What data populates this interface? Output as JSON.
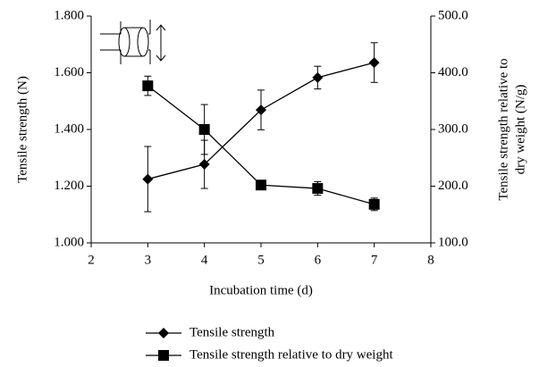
{
  "chart_data": {
    "type": "line",
    "x": [
      3,
      4,
      5,
      6,
      7
    ],
    "xlabel": "Incubation time (d)",
    "ylabel": "Tensile strength (N)",
    "y2label": [
      "Tensile strength relative to",
      "dry weight (N/g)"
    ],
    "xlim": [
      2,
      8
    ],
    "xticks": [
      2,
      3,
      4,
      5,
      6,
      7,
      8
    ],
    "ylim": [
      1,
      1.8
    ],
    "yticks": [
      {
        "value": 1,
        "label": "1.000"
      },
      {
        "value": 1.2,
        "label": "1.200"
      },
      {
        "value": 1.4,
        "label": "1.400"
      },
      {
        "value": 1.6,
        "label": "1.600"
      },
      {
        "value": 1.8,
        "label": "1.800"
      }
    ],
    "y2lim": [
      100,
      500
    ],
    "y2ticks": [
      {
        "value": 100,
        "label": "100.0"
      },
      {
        "value": 200,
        "label": "200.0"
      },
      {
        "value": 300,
        "label": "300.0"
      },
      {
        "value": 400,
        "label": "400.0"
      },
      {
        "value": 500,
        "label": "500.0"
      }
    ],
    "series": [
      {
        "name": "Tensile strength",
        "color": "#000000",
        "marker": "diamond",
        "values": [
          1.225,
          1.277,
          1.469,
          1.583,
          1.636
        ],
        "errors": [
          0.115,
          0.085,
          0.07,
          0.04,
          0.07
        ]
      },
      {
        "name": "Tensile strength relative to dry weight",
        "color": "#000000",
        "marker": "square",
        "axis": "y2",
        "values": [
          377,
          300,
          202,
          196,
          168
        ],
        "errors": [
          17,
          44,
          3,
          12,
          11
        ]
      }
    ]
  }
}
